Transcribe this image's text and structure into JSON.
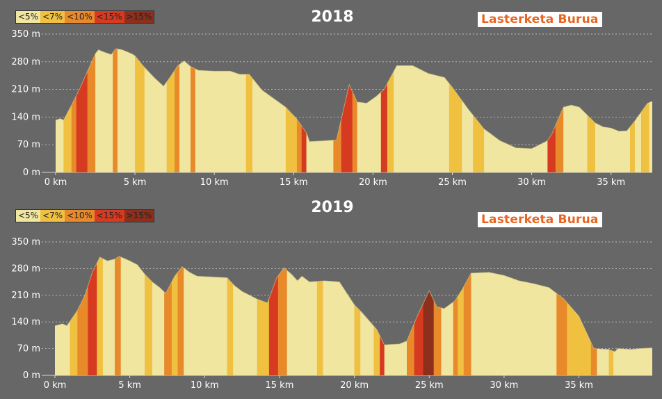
{
  "colors": {
    "background": "#676767",
    "grade": [
      "#f0e6a0",
      "#f0c040",
      "#e8892a",
      "#d63a20",
      "#8c2f1c"
    ],
    "grid": "#d8d8d8",
    "axis_text": "#ffffff"
  },
  "chart_data": [
    {
      "type": "area",
      "title": "2018",
      "brand": "Lasterketa Burua",
      "legend": [
        "<5%",
        "<7%",
        "<10%",
        "<15%",
        ">15%"
      ],
      "y_ticks": [
        0,
        70,
        140,
        210,
        280,
        350
      ],
      "y_tick_labels": [
        "0 m",
        "70 m",
        "140 m",
        "210 m",
        "280 m",
        "350 m"
      ],
      "x_ticks": [
        0,
        5,
        10,
        15,
        20,
        25,
        30,
        35
      ],
      "x_tick_labels": [
        "0 km",
        "5 km",
        "10 km",
        "15 km",
        "20 km",
        "25 km",
        "30 km",
        "35 km"
      ],
      "xlim": [
        0,
        37.6
      ],
      "ylim": [
        0,
        350
      ],
      "profile": [
        [
          0,
          132
        ],
        [
          0.3,
          136
        ],
        [
          0.5,
          132
        ],
        [
          1.0,
          170
        ],
        [
          1.5,
          210
        ],
        [
          2.0,
          255
        ],
        [
          2.5,
          300
        ],
        [
          2.7,
          310
        ],
        [
          3.0,
          305
        ],
        [
          3.5,
          298
        ],
        [
          3.8,
          313
        ],
        [
          4.2,
          310
        ],
        [
          4.8,
          300
        ],
        [
          5.0,
          295
        ],
        [
          5.5,
          270
        ],
        [
          6.2,
          240
        ],
        [
          6.8,
          218
        ],
        [
          7.2,
          240
        ],
        [
          7.7,
          270
        ],
        [
          8.1,
          282
        ],
        [
          8.5,
          268
        ],
        [
          9.0,
          258
        ],
        [
          10.0,
          256
        ],
        [
          11.0,
          256
        ],
        [
          11.6,
          248
        ],
        [
          12.2,
          248
        ],
        [
          13.0,
          208
        ],
        [
          13.8,
          185
        ],
        [
          14.5,
          165
        ],
        [
          15.2,
          135
        ],
        [
          15.8,
          100
        ],
        [
          16.0,
          78
        ],
        [
          17.0,
          80
        ],
        [
          17.7,
          82
        ],
        [
          18.5,
          222
        ],
        [
          19.0,
          178
        ],
        [
          19.6,
          175
        ],
        [
          20.2,
          192
        ],
        [
          20.7,
          210
        ],
        [
          21.5,
          270
        ],
        [
          22.5,
          270
        ],
        [
          23.5,
          250
        ],
        [
          24.5,
          240
        ],
        [
          25.0,
          215
        ],
        [
          26.0,
          160
        ],
        [
          27.0,
          110
        ],
        [
          28.0,
          80
        ],
        [
          29.0,
          62
        ],
        [
          30.0,
          60
        ],
        [
          30.5,
          70
        ],
        [
          31.0,
          80
        ],
        [
          31.3,
          100
        ],
        [
          32.0,
          165
        ],
        [
          32.5,
          170
        ],
        [
          33.0,
          165
        ],
        [
          33.5,
          145
        ],
        [
          34.0,
          125
        ],
        [
          34.5,
          115
        ],
        [
          35.0,
          112
        ],
        [
          35.5,
          104
        ],
        [
          36.0,
          105
        ],
        [
          36.5,
          130
        ],
        [
          37.3,
          175
        ],
        [
          37.6,
          180
        ]
      ],
      "segments": [
        [
          0,
          0.5,
          0
        ],
        [
          0.5,
          1.0,
          1
        ],
        [
          1.0,
          1.3,
          2
        ],
        [
          1.3,
          2.0,
          3
        ],
        [
          2.0,
          2.5,
          2
        ],
        [
          2.5,
          3.6,
          0
        ],
        [
          3.6,
          3.9,
          2
        ],
        [
          3.9,
          5.0,
          0
        ],
        [
          5.0,
          5.6,
          1
        ],
        [
          5.6,
          7.0,
          0
        ],
        [
          7.0,
          7.5,
          1
        ],
        [
          7.5,
          7.8,
          2
        ],
        [
          7.8,
          8.5,
          0
        ],
        [
          8.5,
          8.8,
          2
        ],
        [
          8.8,
          12.0,
          0
        ],
        [
          12.0,
          12.4,
          1
        ],
        [
          12.4,
          14.5,
          0
        ],
        [
          14.5,
          15.2,
          1
        ],
        [
          15.2,
          15.5,
          2
        ],
        [
          15.5,
          15.8,
          3
        ],
        [
          15.8,
          17.5,
          0
        ],
        [
          17.5,
          18.0,
          2
        ],
        [
          18.0,
          18.7,
          3
        ],
        [
          18.7,
          19.0,
          2
        ],
        [
          19.0,
          20.5,
          0
        ],
        [
          20.5,
          20.9,
          3
        ],
        [
          20.9,
          21.3,
          1
        ],
        [
          21.3,
          24.8,
          0
        ],
        [
          24.8,
          25.6,
          1
        ],
        [
          25.6,
          26.3,
          0
        ],
        [
          26.3,
          27.0,
          1
        ],
        [
          27.0,
          31.0,
          0
        ],
        [
          31.0,
          31.5,
          3
        ],
        [
          31.5,
          32.0,
          2
        ],
        [
          32.0,
          33.5,
          0
        ],
        [
          33.5,
          34.0,
          1
        ],
        [
          34.0,
          36.2,
          0
        ],
        [
          36.2,
          36.5,
          1
        ],
        [
          36.5,
          36.9,
          0
        ],
        [
          36.9,
          37.4,
          1
        ],
        [
          37.4,
          37.6,
          0
        ]
      ]
    },
    {
      "type": "area",
      "title": "2019",
      "brand": "Lasterketa Burua",
      "legend": [
        "<5%",
        "<7%",
        "<10%",
        "<15%",
        ">15%"
      ],
      "y_ticks": [
        0,
        70,
        140,
        210,
        280,
        350
      ],
      "y_tick_labels": [
        "0 m",
        "70 m",
        "140 m",
        "210 m",
        "280 m",
        "350 m"
      ],
      "x_ticks": [
        0,
        5,
        10,
        15,
        20,
        25,
        30,
        35
      ],
      "x_tick_labels": [
        "0 km",
        "5 km",
        "10 km",
        "15 km",
        "20 km",
        "25 km",
        "30 km",
        "35 km"
      ],
      "xlim": [
        0,
        39.9
      ],
      "ylim": [
        0,
        350
      ],
      "profile": [
        [
          0,
          130
        ],
        [
          0.5,
          135
        ],
        [
          0.8,
          130
        ],
        [
          1.5,
          170
        ],
        [
          2.0,
          210
        ],
        [
          2.5,
          270
        ],
        [
          3.0,
          310
        ],
        [
          3.5,
          300
        ],
        [
          4.0,
          305
        ],
        [
          4.3,
          312
        ],
        [
          5.0,
          300
        ],
        [
          5.5,
          290
        ],
        [
          6.0,
          265
        ],
        [
          6.5,
          245
        ],
        [
          7.0,
          230
        ],
        [
          7.4,
          215
        ],
        [
          8.0,
          260
        ],
        [
          8.5,
          285
        ],
        [
          9.0,
          270
        ],
        [
          9.5,
          260
        ],
        [
          10.5,
          258
        ],
        [
          11.5,
          256
        ],
        [
          12.0,
          235
        ],
        [
          12.5,
          220
        ],
        [
          13.0,
          210
        ],
        [
          13.5,
          200
        ],
        [
          14.2,
          190
        ],
        [
          14.8,
          255
        ],
        [
          15.3,
          282
        ],
        [
          15.8,
          265
        ],
        [
          16.2,
          248
        ],
        [
          16.5,
          260
        ],
        [
          17.0,
          245
        ],
        [
          18.0,
          248
        ],
        [
          19.0,
          245
        ],
        [
          19.5,
          215
        ],
        [
          20.0,
          185
        ],
        [
          20.5,
          165
        ],
        [
          21.5,
          120
        ],
        [
          22.0,
          80
        ],
        [
          23.0,
          82
        ],
        [
          23.5,
          90
        ],
        [
          24.2,
          155
        ],
        [
          25.0,
          222
        ],
        [
          25.5,
          180
        ],
        [
          26.0,
          175
        ],
        [
          26.7,
          195
        ],
        [
          27.2,
          225
        ],
        [
          27.8,
          268
        ],
        [
          29.0,
          270
        ],
        [
          30.0,
          262
        ],
        [
          31.0,
          248
        ],
        [
          32.0,
          240
        ],
        [
          33.0,
          230
        ],
        [
          34.0,
          200
        ],
        [
          35.0,
          155
        ],
        [
          36.0,
          70
        ],
        [
          37.0,
          68
        ],
        [
          37.4,
          62
        ],
        [
          37.6,
          70
        ],
        [
          38.5,
          68
        ],
        [
          39.0,
          70
        ],
        [
          39.9,
          72
        ]
      ],
      "segments": [
        [
          0,
          1.0,
          0
        ],
        [
          1.0,
          1.5,
          1
        ],
        [
          1.5,
          2.2,
          2
        ],
        [
          2.2,
          2.8,
          3
        ],
        [
          2.8,
          3.2,
          1
        ],
        [
          3.2,
          4.0,
          0
        ],
        [
          4.0,
          4.4,
          2
        ],
        [
          4.4,
          6.0,
          0
        ],
        [
          6.0,
          6.5,
          1
        ],
        [
          6.5,
          7.3,
          0
        ],
        [
          7.3,
          7.8,
          2
        ],
        [
          7.8,
          8.2,
          1
        ],
        [
          8.2,
          8.6,
          2
        ],
        [
          8.6,
          11.5,
          0
        ],
        [
          11.5,
          11.9,
          1
        ],
        [
          11.9,
          13.5,
          0
        ],
        [
          13.5,
          14.3,
          1
        ],
        [
          14.3,
          14.9,
          3
        ],
        [
          14.9,
          15.5,
          2
        ],
        [
          15.5,
          17.5,
          0
        ],
        [
          17.5,
          17.9,
          1
        ],
        [
          17.9,
          20.0,
          0
        ],
        [
          20.0,
          20.4,
          1
        ],
        [
          20.4,
          21.3,
          0
        ],
        [
          21.3,
          21.7,
          1
        ],
        [
          21.7,
          22.0,
          3
        ],
        [
          22.0,
          23.5,
          0
        ],
        [
          23.5,
          24.0,
          2
        ],
        [
          24.0,
          24.6,
          3
        ],
        [
          24.6,
          25.3,
          4
        ],
        [
          25.3,
          25.8,
          2
        ],
        [
          25.8,
          26.6,
          0
        ],
        [
          26.6,
          26.9,
          2
        ],
        [
          26.9,
          27.3,
          1
        ],
        [
          27.3,
          27.8,
          2
        ],
        [
          27.8,
          33.5,
          0
        ],
        [
          33.5,
          34.2,
          2
        ],
        [
          34.2,
          35.8,
          1
        ],
        [
          35.8,
          36.2,
          2
        ],
        [
          36.2,
          37.0,
          0
        ],
        [
          37.0,
          37.3,
          1
        ],
        [
          37.3,
          39.9,
          0
        ]
      ]
    }
  ]
}
